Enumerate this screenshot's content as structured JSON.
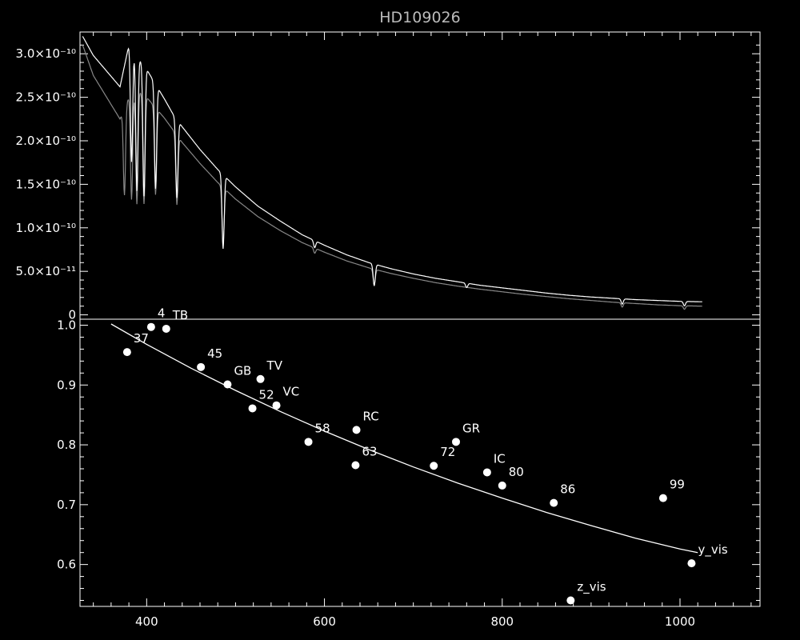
{
  "chart_data": [
    {
      "type": "line",
      "title": "HD109026",
      "xlabel": "",
      "ylabel": "",
      "xlim": [
        325,
        1090
      ],
      "ylim": [
        -5e-12,
        3.25e-10
      ],
      "xticks_shared_with_lower_panel": true,
      "ytick_labels": [
        {
          "value": 0,
          "text": "0"
        },
        {
          "value": 5e-11,
          "text": "5.0×10⁻¹¹"
        },
        {
          "value": 1e-10,
          "text": "1.0×10⁻¹⁰"
        },
        {
          "value": 1.5e-10,
          "text": "1.5×10⁻¹⁰"
        },
        {
          "value": 2e-10,
          "text": "2.0×10⁻¹⁰"
        },
        {
          "value": 2.5e-10,
          "text": "2.5×10⁻¹⁰"
        },
        {
          "value": 3e-10,
          "text": "3.0×10⁻¹⁰"
        }
      ],
      "series": [
        {
          "color": "#ffffff",
          "x": [
            328,
            340,
            355,
            370,
            380,
            390,
            400,
            410,
            420,
            430,
            440,
            460,
            480,
            500,
            525,
            550,
            575,
            600,
            625,
            650,
            675,
            700,
            725,
            750,
            775,
            800,
            825,
            850,
            875,
            900,
            925,
            950,
            975,
            1000,
            1025
          ],
          "y": [
            3.2e-10,
            2.98e-10,
            2.8e-10,
            2.62e-10,
            3.1e-10,
            2.96e-10,
            2.82e-10,
            2.65e-10,
            2.48e-10,
            2.3e-10,
            2.16e-10,
            1.9e-10,
            1.67e-10,
            1.47e-10,
            1.25e-10,
            1.08e-10,
            9.2e-11,
            8e-11,
            6.9e-11,
            6e-11,
            5.3e-11,
            4.7e-11,
            4.2e-11,
            3.8e-11,
            3.4e-11,
            3.1e-11,
            2.8e-11,
            2.5e-11,
            2.25e-11,
            2.05e-11,
            1.9e-11,
            1.75e-11,
            1.65e-11,
            1.55e-11,
            1.5e-11
          ],
          "absorption_lines": [
            {
              "x": 383,
              "depth": 1.3e-10
            },
            {
              "x": 389,
              "depth": 1.55e-10
            },
            {
              "x": 397,
              "depth": 1.5e-10
            },
            {
              "x": 410,
              "depth": 1.2e-10
            },
            {
              "x": 434,
              "depth": 9e-11
            },
            {
              "x": 486,
              "depth": 8.5e-11
            },
            {
              "x": 589,
              "depth": 8e-12
            },
            {
              "x": 656,
              "depth": 2.5e-11
            },
            {
              "x": 760,
              "depth": 5e-12
            },
            {
              "x": 935,
              "depth": 6e-12
            },
            {
              "x": 1005,
              "depth": 5e-12
            }
          ]
        },
        {
          "color": "#888888",
          "x": [
            328,
            340,
            355,
            370,
            380,
            390,
            400,
            410,
            420,
            430,
            440,
            460,
            480,
            500,
            525,
            550,
            575,
            600,
            625,
            650,
            675,
            700,
            725,
            750,
            775,
            800,
            825,
            850,
            875,
            900,
            925,
            950,
            975,
            1000,
            1025
          ],
          "y": [
            3.1e-10,
            2.75e-10,
            2.5e-10,
            2.25e-10,
            2.5e-10,
            2.58e-10,
            2.5e-10,
            2.38e-10,
            2.26e-10,
            2.12e-10,
            1.98e-10,
            1.74e-10,
            1.52e-10,
            1.33e-10,
            1.13e-10,
            9.7e-11,
            8.3e-11,
            7.2e-11,
            6.2e-11,
            5.4e-11,
            4.75e-11,
            4.2e-11,
            3.7e-11,
            3.3e-11,
            2.95e-11,
            2.65e-11,
            2.35e-11,
            2.1e-11,
            1.85e-11,
            1.65e-11,
            1.45e-11,
            1.3e-11,
            1.15e-11,
            1.05e-11,
            1e-11
          ],
          "absorption_lines": [
            {
              "x": 375,
              "depth": 1e-10
            },
            {
              "x": 383,
              "depth": 1.2e-10
            },
            {
              "x": 389,
              "depth": 1.3e-10
            },
            {
              "x": 397,
              "depth": 1.25e-10
            },
            {
              "x": 410,
              "depth": 1e-10
            },
            {
              "x": 434,
              "depth": 8e-11
            },
            {
              "x": 486,
              "depth": 6.5e-11
            },
            {
              "x": 589,
              "depth": 6e-12
            },
            {
              "x": 656,
              "depth": 1.8e-11
            },
            {
              "x": 935,
              "depth": 5e-12
            },
            {
              "x": 1005,
              "depth": 4e-12
            }
          ]
        }
      ]
    },
    {
      "type": "scatter",
      "xlabel": "",
      "ylabel": "",
      "xlim": [
        325,
        1090
      ],
      "ylim": [
        0.53,
        1.01
      ],
      "xticks": [
        400,
        600,
        800,
        1000
      ],
      "yticks": [
        0.6,
        0.7,
        0.8,
        0.9,
        1.0
      ],
      "ytick_labels": [
        "0.6",
        "0.7",
        "0.8",
        "0.9",
        "1.0"
      ],
      "points": [
        {
          "x": 378,
          "y": 0.955,
          "label": "37"
        },
        {
          "x": 405,
          "y": 0.997,
          "label": "4"
        },
        {
          "x": 422,
          "y": 0.994,
          "label": "TB"
        },
        {
          "x": 461,
          "y": 0.93,
          "label": "45"
        },
        {
          "x": 491,
          "y": 0.901,
          "label": "GB"
        },
        {
          "x": 528,
          "y": 0.91,
          "label": "TV"
        },
        {
          "x": 519,
          "y": 0.861,
          "label": "52"
        },
        {
          "x": 546,
          "y": 0.866,
          "label": "VC"
        },
        {
          "x": 582,
          "y": 0.805,
          "label": "58"
        },
        {
          "x": 636,
          "y": 0.825,
          "label": "RC"
        },
        {
          "x": 635,
          "y": 0.766,
          "label": "63"
        },
        {
          "x": 723,
          "y": 0.765,
          "label": "72"
        },
        {
          "x": 748,
          "y": 0.805,
          "label": "GR"
        },
        {
          "x": 783,
          "y": 0.754,
          "label": "IC"
        },
        {
          "x": 800,
          "y": 0.732,
          "label": "80"
        },
        {
          "x": 858,
          "y": 0.703,
          "label": "86"
        },
        {
          "x": 981,
          "y": 0.711,
          "label": "99"
        },
        {
          "x": 1013,
          "y": 0.602,
          "label": "y_vis"
        },
        {
          "x": 877,
          "y": 0.54,
          "label": "z_vis"
        }
      ],
      "fit_curve": {
        "x": [
          360,
          400,
          450,
          500,
          550,
          600,
          650,
          700,
          750,
          800,
          850,
          900,
          950,
          1000,
          1020
        ],
        "y": [
          1.002,
          0.968,
          0.928,
          0.891,
          0.856,
          0.823,
          0.792,
          0.763,
          0.736,
          0.711,
          0.687,
          0.665,
          0.644,
          0.626,
          0.62
        ]
      }
    }
  ]
}
